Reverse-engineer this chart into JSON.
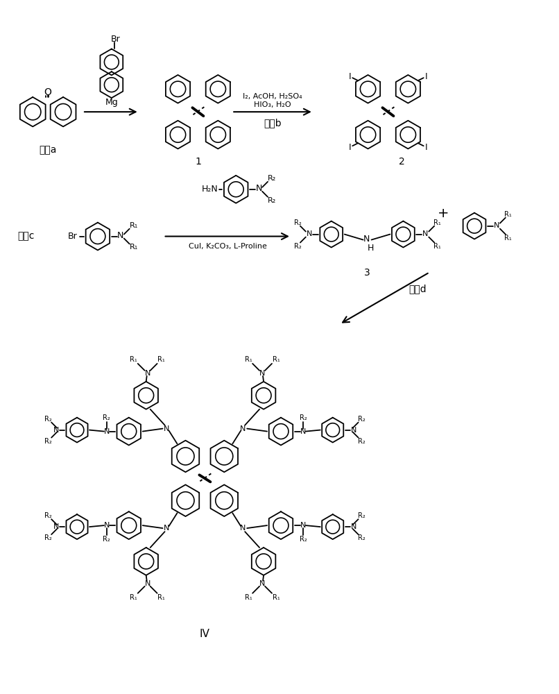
{
  "bg_color": "#ffffff",
  "line_color": "#000000",
  "fig_width": 8.06,
  "fig_height": 10.0,
  "dpi": 100,
  "step_a": "步骤a",
  "step_b": "步骤b",
  "step_c": "步骤c",
  "step_d": "步骤d",
  "reagent_a": "Mg",
  "reagent_b1": "I₂, AcOH, H₂SO₄",
  "reagent_b2": "HIO₃, H₂O",
  "reagent_c": "CuI, K₂CO₃, L-Proline",
  "label_1": "1",
  "label_2": "2",
  "label_3": "3",
  "label_IV": "IV",
  "Br": "Br",
  "I_label": "I",
  "H2N": "H₂N",
  "NH": "NH",
  "NR1": "N–R₁",
  "R1": "R₁",
  "R2": "R₂",
  "plus": "+"
}
